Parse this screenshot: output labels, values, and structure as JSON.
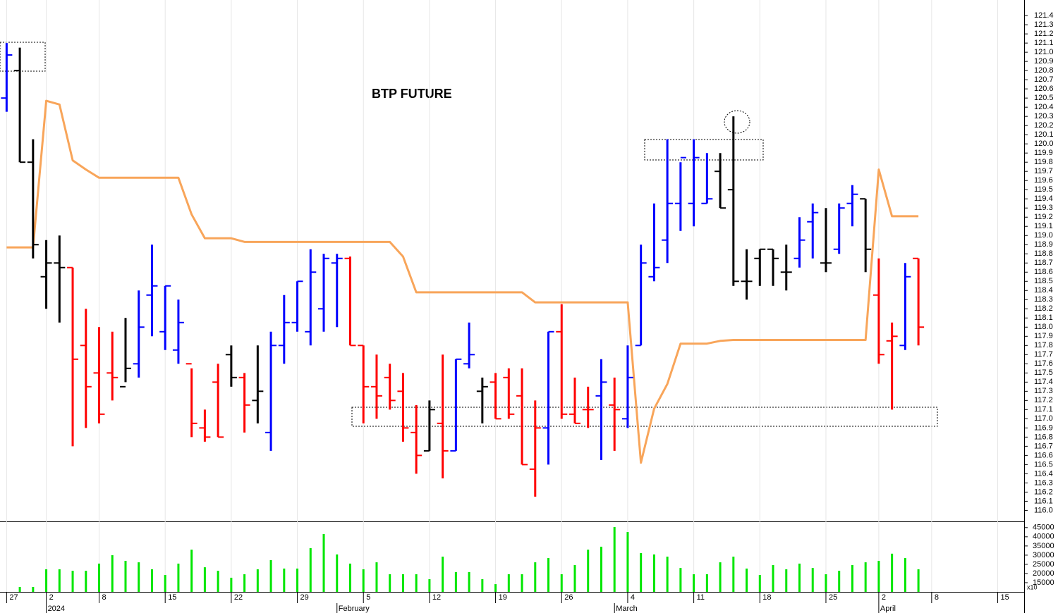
{
  "chart_data": {
    "type": "ohlc",
    "title": "BTP FUTURE",
    "xlim": [
      -0.5,
      77.0
    ],
    "ylim": [
      115.88,
      121.57
    ],
    "xticks": [
      {
        "value": 0,
        "label": "27"
      },
      {
        "value": 3,
        "label": "2"
      },
      {
        "value": 7,
        "label": "8"
      },
      {
        "value": 12,
        "label": "15"
      },
      {
        "value": 17,
        "label": "22"
      },
      {
        "value": 22,
        "label": "29"
      },
      {
        "value": 27,
        "label": "5"
      },
      {
        "value": 32,
        "label": "12"
      },
      {
        "value": 37,
        "label": "19"
      },
      {
        "value": 42,
        "label": "26"
      },
      {
        "value": 47,
        "label": "4"
      },
      {
        "value": 52,
        "label": "11"
      },
      {
        "value": 57,
        "label": "18"
      },
      {
        "value": 62,
        "label": "25"
      },
      {
        "value": 66,
        "label": "2"
      },
      {
        "value": 70,
        "label": "8"
      },
      {
        "value": 75,
        "label": "15"
      }
    ],
    "month_ticks": [
      {
        "value": 3,
        "label": "2024"
      },
      {
        "value": 25,
        "label": "February"
      },
      {
        "value": 46,
        "label": "March"
      },
      {
        "value": 66,
        "label": "April"
      }
    ],
    "yticks": [
      {
        "value": 116,
        "label": "116.0"
      },
      116.1,
      116.2,
      116.3,
      116.4,
      116.5,
      116.6,
      116.7,
      116.8,
      116.9,
      {
        "value": 117,
        "label": "117.0"
      },
      117.1,
      117.2,
      117.3,
      117.4,
      117.5,
      117.6,
      117.7,
      117.8,
      117.9,
      {
        "value": 118,
        "label": "118.0"
      },
      118.1,
      118.2,
      118.3,
      118.4,
      118.5,
      118.6,
      118.7,
      118.8,
      118.9,
      {
        "value": 119,
        "label": "119.0"
      },
      119.1,
      119.2,
      119.3,
      119.4,
      119.5,
      119.6,
      119.7,
      119.8,
      119.9,
      {
        "value": 120,
        "label": "120.0"
      },
      120.1,
      120.2,
      120.3,
      120.4,
      120.5,
      120.6,
      120.7,
      120.8,
      120.9,
      {
        "value": 121,
        "label": "121.0"
      },
      121.1,
      121.2,
      121.3,
      121.4
    ],
    "open": [
      120.5,
      120.8,
      119.8,
      118.55,
      118.7,
      118.65,
      117.8,
      117.5,
      117.5,
      117.35,
      117.6,
      118.35,
      117.95,
      117.75,
      117.6,
      116.9,
      117.4,
      117.7,
      117.45,
      117.2,
      116.85,
      117.8,
      118.05,
      117.95,
      118.2,
      118.7,
      118.75,
      117.8,
      117.35,
      117.45,
      117.3,
      116.85,
      116.65,
      116.95,
      116.65,
      117.6,
      117.3,
      117.4,
      117.45,
      117.25,
      116.45,
      116.9,
      117.95,
      117.05,
      117.1,
      117.25,
      117.15,
      117.0,
      117.8,
      118.55,
      118.95,
      119.35,
      119.35,
      119.35,
      119.7,
      119.5,
      118.5,
      118.75,
      118.85,
      118.6,
      118.75,
      119.15,
      118.7,
      118.85,
      119.35,
      119.4,
      118.35,
      117.85,
      117.8,
      118.75
    ],
    "high": [
      121.1,
      121.05,
      120.05,
      118.95,
      119.0,
      118.65,
      118.2,
      118.0,
      117.95,
      118.1,
      118.4,
      118.9,
      118.45,
      118.3,
      117.55,
      117.1,
      117.6,
      117.8,
      117.5,
      117.8,
      117.95,
      118.35,
      118.5,
      118.85,
      118.8,
      118.8,
      118.77,
      117.8,
      117.7,
      117.6,
      117.5,
      117.15,
      117.2,
      117.7,
      117.65,
      118.05,
      117.45,
      117.5,
      117.55,
      117.55,
      117.2,
      117.95,
      118.25,
      117.45,
      117.35,
      117.65,
      117.45,
      117.8,
      118.9,
      119.35,
      120.05,
      119.8,
      120.05,
      119.9,
      119.9,
      120.3,
      118.85,
      118.85,
      118.85,
      118.9,
      119.2,
      119.35,
      119.3,
      119.35,
      119.55,
      119.4,
      118.75,
      118.05,
      118.7,
      118.75
    ],
    "low": [
      120.35,
      119.8,
      118.75,
      118.2,
      118.05,
      116.7,
      116.9,
      116.95,
      117.2,
      117.4,
      117.45,
      117.9,
      117.75,
      117.6,
      116.8,
      116.75,
      116.8,
      117.35,
      116.85,
      116.95,
      116.65,
      117.6,
      117.95,
      117.8,
      117.95,
      118.0,
      117.8,
      116.95,
      117.0,
      117.1,
      116.75,
      116.4,
      116.65,
      116.35,
      116.65,
      117.55,
      116.95,
      117.0,
      117.0,
      116.5,
      116.15,
      116.5,
      117.0,
      116.95,
      116.9,
      116.55,
      116.65,
      116.9,
      117.8,
      118.5,
      118.7,
      119.05,
      119.1,
      119.35,
      119.3,
      118.45,
      118.3,
      118.45,
      118.45,
      118.4,
      118.65,
      118.75,
      118.6,
      118.8,
      119.1,
      118.6,
      117.6,
      117.1,
      117.75,
      117.8
    ],
    "close": [
      120.97,
      119.8,
      118.9,
      118.7,
      118.65,
      117.65,
      117.35,
      117.05,
      117.45,
      117.55,
      118.0,
      118.45,
      118.45,
      118.05,
      116.95,
      116.8,
      116.8,
      117.45,
      117.15,
      117.3,
      117.8,
      118.05,
      118.5,
      118.6,
      118.75,
      118.75,
      117.8,
      117.35,
      117.25,
      117.2,
      116.9,
      116.6,
      117.1,
      116.65,
      117.65,
      117.7,
      117.35,
      117.0,
      117.05,
      116.5,
      116.9,
      117.95,
      117.05,
      116.95,
      117.1,
      117.4,
      117.1,
      117.45,
      118.7,
      118.65,
      119.35,
      119.85,
      119.85,
      119.4,
      119.3,
      118.5,
      118.5,
      118.85,
      118.75,
      118.6,
      118.95,
      119.25,
      118.7,
      119.3,
      119.45,
      118.85,
      117.7,
      117.9,
      118.55,
      118.0
    ],
    "bar_colors": [
      "#0000ff",
      "#000000",
      "#000000",
      "#000000",
      "#000000",
      "#ff0000",
      "#ff0000",
      "#ff0000",
      "#ff0000",
      "#000000",
      "#0000ff",
      "#0000ff",
      "#0000ff",
      "#0000ff",
      "#ff0000",
      "#ff0000",
      "#ff0000",
      "#000000",
      "#ff0000",
      "#000000",
      "#0000ff",
      "#0000ff",
      "#0000ff",
      "#0000ff",
      "#0000ff",
      "#0000ff",
      "#ff0000",
      "#ff0000",
      "#ff0000",
      "#ff0000",
      "#ff0000",
      "#ff0000",
      "#000000",
      "#ff0000",
      "#0000ff",
      "#0000ff",
      "#000000",
      "#ff0000",
      "#ff0000",
      "#ff0000",
      "#ff0000",
      "#0000ff",
      "#ff0000",
      "#ff0000",
      "#ff0000",
      "#0000ff",
      "#ff0000",
      "#0000ff",
      "#0000ff",
      "#0000ff",
      "#0000ff",
      "#0000ff",
      "#0000ff",
      "#0000ff",
      "#000000",
      "#000000",
      "#000000",
      "#000000",
      "#000000",
      "#000000",
      "#0000ff",
      "#0000ff",
      "#000000",
      "#0000ff",
      "#0000ff",
      "#000000",
      "#ff0000",
      "#ff0000",
      "#0000ff",
      "#ff0000"
    ],
    "line": {
      "color": "#f8a55a",
      "values": [
        118.87,
        118.87,
        118.87,
        120.47,
        120.43,
        119.82,
        119.72,
        119.63,
        119.63,
        119.63,
        119.63,
        119.63,
        119.63,
        119.63,
        119.23,
        118.97,
        118.97,
        118.97,
        118.93,
        118.93,
        118.93,
        118.93,
        118.93,
        118.93,
        118.93,
        118.93,
        118.93,
        118.93,
        118.93,
        118.93,
        118.77,
        118.38,
        118.38,
        118.38,
        118.38,
        118.38,
        118.38,
        118.38,
        118.38,
        118.38,
        118.27,
        118.27,
        118.27,
        118.27,
        118.27,
        118.27,
        118.27,
        118.27,
        116.52,
        117.11,
        117.38,
        117.82,
        117.82,
        117.82,
        117.85,
        117.86,
        117.86,
        117.86,
        117.86,
        117.86,
        117.86,
        117.86,
        117.86,
        117.86,
        117.86,
        117.86,
        119.72,
        119.21,
        119.21,
        119.21
      ]
    },
    "volume": {
      "color": "#00e600",
      "unit": "x10",
      "ylim": [
        10000,
        48000
      ],
      "yticks": [
        15000,
        20000,
        25000,
        30000,
        35000,
        40000,
        45000
      ],
      "values": [
        null,
        12700,
        12700,
        22300,
        22300,
        21500,
        21500,
        25400,
        30000,
        26900,
        26100,
        22300,
        19200,
        25400,
        33000,
        23400,
        21500,
        17700,
        19600,
        22300,
        27300,
        22700,
        22700,
        33800,
        41500,
        30400,
        25400,
        22300,
        26100,
        19600,
        19600,
        19600,
        16900,
        29200,
        20800,
        20800,
        16900,
        14200,
        19600,
        19600,
        26100,
        28400,
        19600,
        24600,
        33000,
        34600,
        45300,
        42600,
        31100,
        30400,
        29200,
        23000,
        19600,
        19600,
        26100,
        29200,
        22700,
        19200,
        24600,
        22300,
        25400,
        23000,
        19600,
        21500,
        24600,
        26100,
        26900,
        30800,
        28400,
        22300
      ]
    }
  }
}
